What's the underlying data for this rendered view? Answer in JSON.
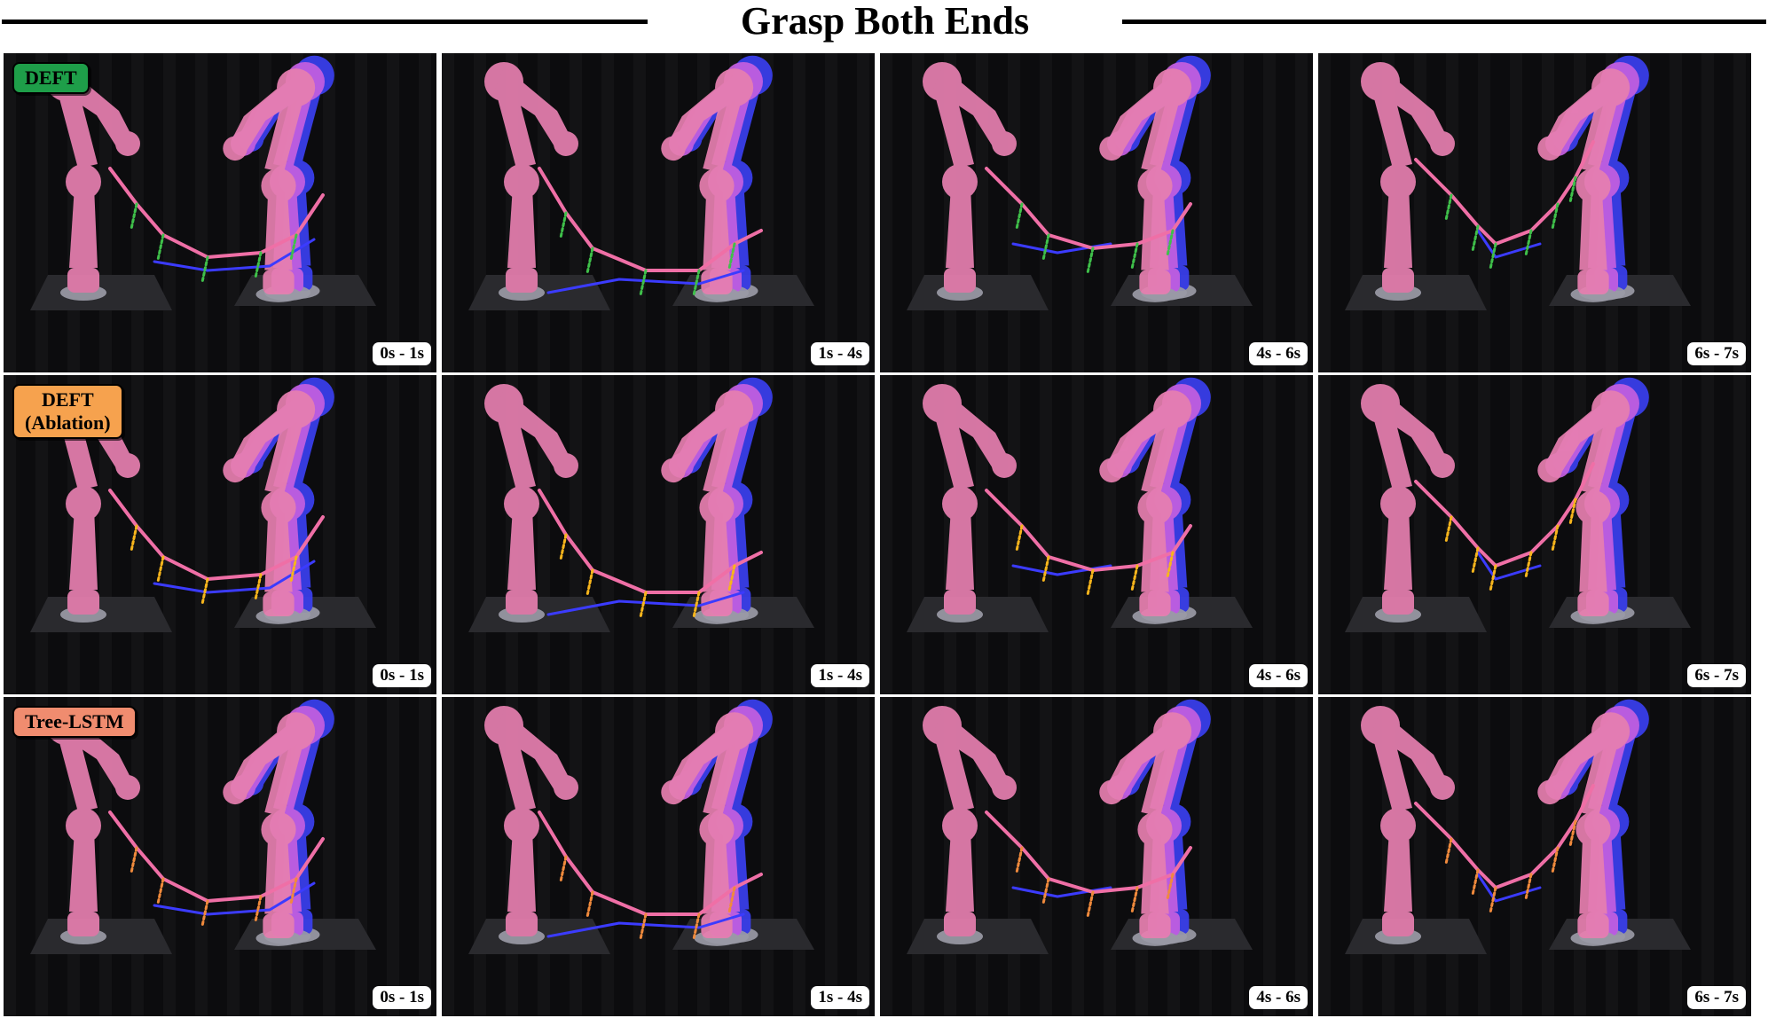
{
  "title": "Grasp Both Ends",
  "rows": [
    {
      "method": "DEFT",
      "method_color": "#1e9e49",
      "track_color": "#3fc04a",
      "panels": [
        {
          "time": "0s - 1s"
        },
        {
          "time": "1s - 4s"
        },
        {
          "time": "4s - 6s"
        },
        {
          "time": "6s - 7s"
        }
      ]
    },
    {
      "method": "DEFT\n(Ablation)",
      "method_color": "#f6a24e",
      "track_color": "#f7b51c",
      "panels": [
        {
          "time": "0s - 1s"
        },
        {
          "time": "1s - 4s"
        },
        {
          "time": "4s - 6s"
        },
        {
          "time": "6s - 7s"
        }
      ]
    },
    {
      "method": "Tree-LSTM",
      "method_color": "#f08c6f",
      "track_color": "#f08a3c",
      "panels": [
        {
          "time": "0s - 1s"
        },
        {
          "time": "1s - 4s"
        },
        {
          "time": "4s - 6s"
        },
        {
          "time": "6s - 7s"
        }
      ]
    }
  ],
  "colors": {
    "robot_pink": "#e77fb0",
    "robot_blue": "#3a3ff0",
    "robot_magenta": "#c55fe0",
    "rope_pink": "#ef6fa6",
    "rope_blue": "#3b3bff"
  }
}
